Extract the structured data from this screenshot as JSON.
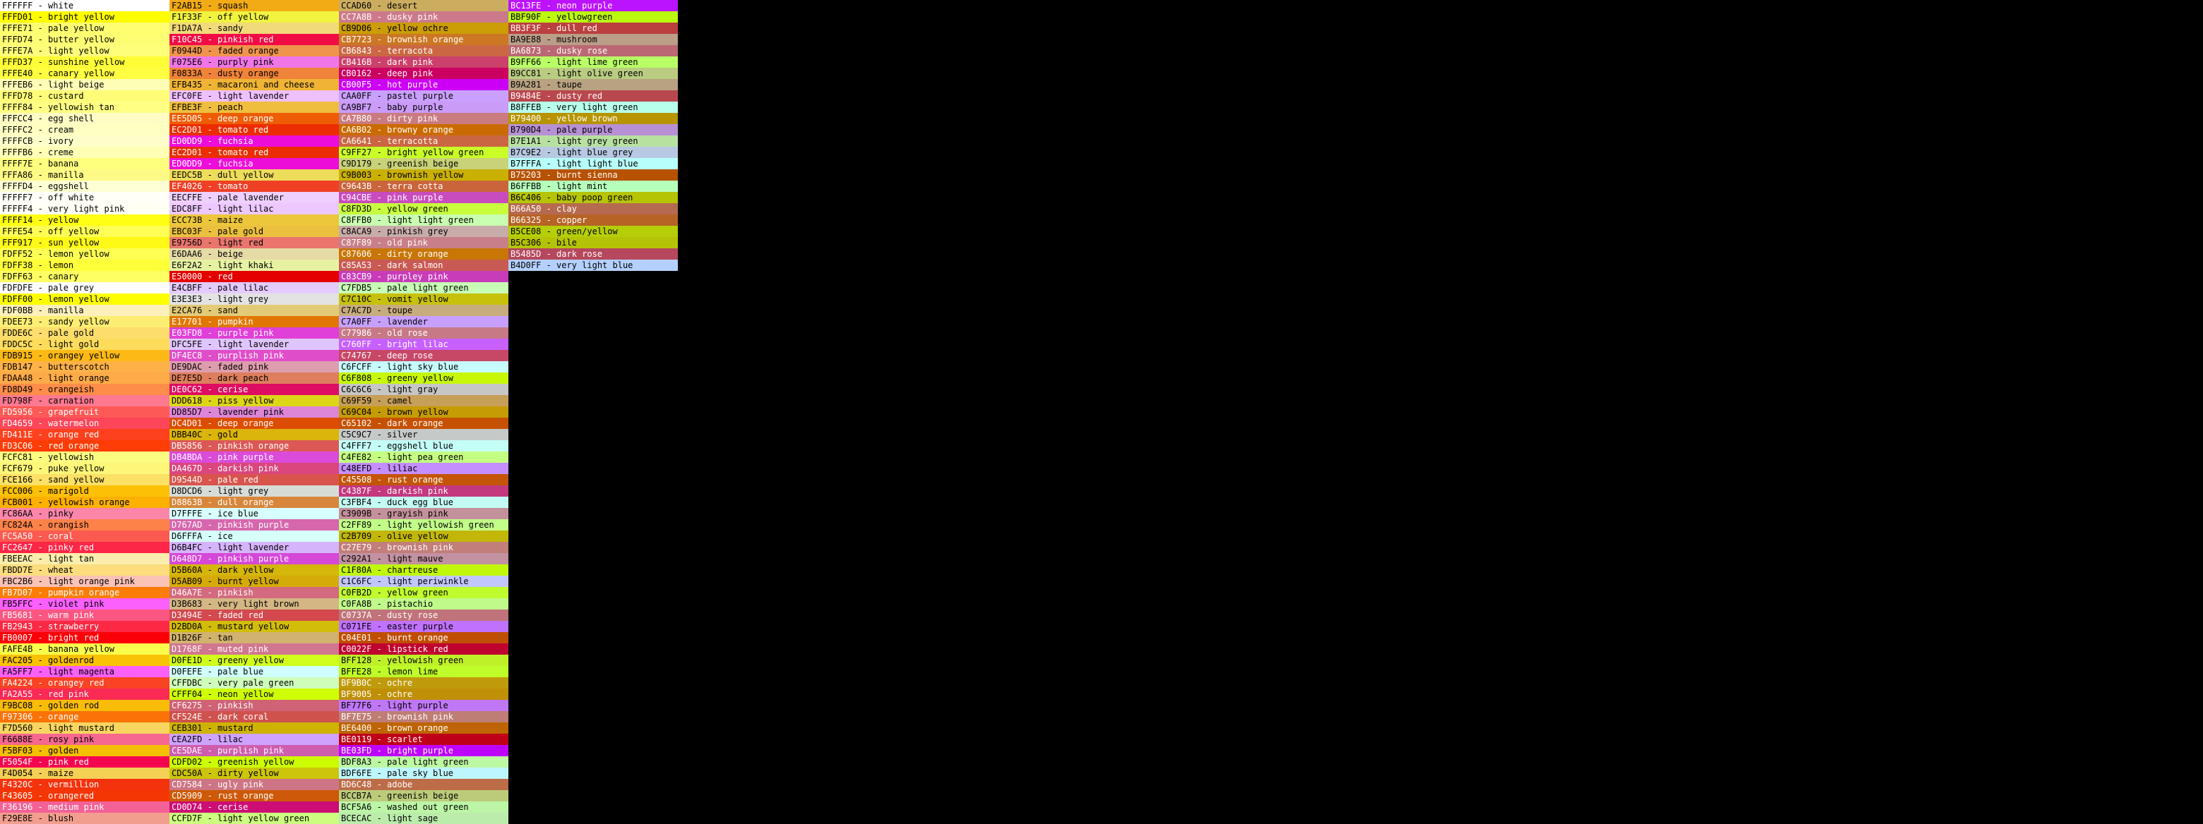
{
  "colors": [
    {
      "hex": "#ffffff",
      "name": "white"
    },
    {
      "hex": "#fffd01",
      "name": "bright yellow"
    },
    {
      "hex": "#fffe71",
      "name": "pale yellow"
    },
    {
      "hex": "#fffd74",
      "name": "butter yellow"
    },
    {
      "hex": "#fffe7a",
      "name": "light yellow"
    },
    {
      "hex": "#fffd37",
      "name": "sunshine yellow"
    },
    {
      "hex": "#fffe40",
      "name": "canary yellow"
    },
    {
      "hex": "#fffeb6",
      "name": "light beige"
    },
    {
      "hex": "#fffd78",
      "name": "custard"
    },
    {
      "hex": "#ffff84",
      "name": "yellowish tan"
    },
    {
      "hex": "#fffcc4",
      "name": "egg shell"
    },
    {
      "hex": "#ffffc2",
      "name": "cream"
    },
    {
      "hex": "#ffffcb",
      "name": "ivory"
    },
    {
      "hex": "#ffffb6",
      "name": "creme"
    },
    {
      "hex": "#ffff7e",
      "name": "banana"
    },
    {
      "hex": "#fffa86",
      "name": "manilla"
    },
    {
      "hex": "#ffffd4",
      "name": "eggshell"
    },
    {
      "hex": "#fffff7",
      "name": "off white"
    },
    {
      "hex": "#fffff4",
      "name": "very light pink"
    },
    {
      "hex": "#ffff14",
      "name": "yellow"
    },
    {
      "hex": "#fffe54",
      "name": "off yellow"
    },
    {
      "hex": "#fff917",
      "name": "sun yellow"
    },
    {
      "hex": "#fdff52",
      "name": "lemon yellow"
    },
    {
      "hex": "#fdff38",
      "name": "lemon"
    },
    {
      "hex": "#fdff63",
      "name": "canary"
    },
    {
      "hex": "#fdfdfe",
      "name": "pale grey"
    },
    {
      "hex": "#fdff00",
      "name": "lemon yellow"
    },
    {
      "hex": "#fdf0bb",
      "name": "manilla"
    },
    {
      "hex": "#fdee73",
      "name": "sandy yellow"
    },
    {
      "hex": "#fdde6c",
      "name": "pale gold"
    },
    {
      "hex": "#fddc5c",
      "name": "light gold"
    },
    {
      "hex": "#fdb915",
      "name": "orangey yellow"
    },
    {
      "hex": "#fdb147",
      "name": "butterscotch"
    },
    {
      "hex": "#fdaa48",
      "name": "light orange"
    },
    {
      "hex": "#fd8d49",
      "name": "orangeish"
    },
    {
      "hex": "#fd798f",
      "name": "carnation"
    },
    {
      "hex": "#fd5956",
      "name": "grapefruit"
    },
    {
      "hex": "#fd4659",
      "name": "watermelon"
    },
    {
      "hex": "#fd411e",
      "name": "orange red"
    },
    {
      "hex": "#fd3c06",
      "name": "red orange"
    },
    {
      "hex": "#fcfc81",
      "name": "yellowish"
    },
    {
      "hex": "#fcf679",
      "name": "puke yellow"
    },
    {
      "hex": "#fce166",
      "name": "sand yellow"
    },
    {
      "hex": "#fcc006",
      "name": "marigold"
    },
    {
      "hex": "#fcb001",
      "name": "yellowish orange"
    },
    {
      "hex": "#fc86aa",
      "name": "pinky"
    },
    {
      "hex": "#fc824a",
      "name": "orangish"
    },
    {
      "hex": "#fc5a50",
      "name": "coral"
    },
    {
      "hex": "#fc2647",
      "name": "pinky red"
    },
    {
      "hex": "#fbeeac",
      "name": "light tan"
    },
    {
      "hex": "#fbdd7e",
      "name": "wheat"
    },
    {
      "hex": "#fbc2b6",
      "name": "light orange pink"
    },
    {
      "hex": "#fb7d07",
      "name": "pumpkin orange"
    },
    {
      "hex": "#fb5ffc",
      "name": "violet pink"
    },
    {
      "hex": "#fb5681",
      "name": "warm pink"
    },
    {
      "hex": "#fb2943",
      "name": "strawberry"
    },
    {
      "hex": "#fb0007",
      "name": "bright red"
    },
    {
      "hex": "#fafe4b",
      "name": "banana yellow"
    },
    {
      "hex": "#fac205",
      "name": "goldenrod"
    },
    {
      "hex": "#fa5ff7",
      "name": "light magenta"
    },
    {
      "hex": "#fa4224",
      "name": "orangey red"
    },
    {
      "hex": "#fa2a55",
      "name": "red pink"
    },
    {
      "hex": "#f9bc08",
      "name": "golden rod"
    },
    {
      "hex": "#f97306",
      "name": "orange"
    },
    {
      "hex": "#f7d560",
      "name": "light mustard"
    },
    {
      "hex": "#f6688e",
      "name": "rosy pink"
    },
    {
      "hex": "#f5bf03",
      "name": "golden"
    },
    {
      "hex": "#f5054f",
      "name": "pink red"
    },
    {
      "hex": "#f4d054",
      "name": "maize"
    },
    {
      "hex": "#f4320c",
      "name": "vermillion"
    },
    {
      "hex": "#f43605",
      "name": "orangered"
    },
    {
      "hex": "#f36196",
      "name": "medium pink"
    },
    {
      "hex": "#f29e8e",
      "name": "blush"
    },
    {
      "hex": "#f2ab15",
      "name": "squash"
    },
    {
      "hex": "#f1f33f",
      "name": "off yellow"
    },
    {
      "hex": "#f1da7a",
      "name": "sandy"
    },
    {
      "hex": "#f10c45",
      "name": "pinkish red"
    },
    {
      "hex": "#f0944d",
      "name": "faded orange"
    },
    {
      "hex": "#f075e6",
      "name": "purply pink"
    },
    {
      "hex": "#f0833a",
      "name": "dusty orange"
    },
    {
      "hex": "#efb435",
      "name": "macaroni and cheese"
    },
    {
      "hex": "#efc0fe",
      "name": "light lavender"
    },
    {
      "hex": "#efbe3f",
      "name": "peach"
    },
    {
      "hex": "#ee5d05",
      "name": "deep orange"
    },
    {
      "hex": "#ec2d01",
      "name": "tomato red"
    },
    {
      "hex": "#ed0dd9",
      "name": "fuchsia"
    },
    {
      "hex": "#ec2d01",
      "name": "tomato red"
    },
    {
      "hex": "#ed0dd9",
      "name": "fuchsia"
    },
    {
      "hex": "#eedc5b",
      "name": "dull yellow"
    },
    {
      "hex": "#ef4026",
      "name": "tomato"
    },
    {
      "hex": "#eecffe",
      "name": "pale lavender"
    },
    {
      "hex": "#edc8ff",
      "name": "light lilac"
    },
    {
      "hex": "#ecc73b",
      "name": "maize"
    },
    {
      "hex": "#ebc03f",
      "name": "pale gold"
    },
    {
      "hex": "#e9756d",
      "name": "light red"
    },
    {
      "hex": "#e6daa6",
      "name": "beige"
    },
    {
      "hex": "#e6f2a2",
      "name": "light khaki"
    },
    {
      "hex": "#e50000",
      "name": "red"
    },
    {
      "hex": "#e4cbff",
      "name": "pale lilac"
    },
    {
      "hex": "#e3e3e3",
      "name": "light grey"
    },
    {
      "hex": "#e2ca76",
      "name": "sand"
    },
    {
      "hex": "#e17701",
      "name": "pumpkin"
    },
    {
      "hex": "#e03fd8",
      "name": "purple pink"
    },
    {
      "hex": "#dfc5fe",
      "name": "light lavender"
    },
    {
      "hex": "#df4ec8",
      "name": "purplish pink"
    },
    {
      "hex": "#de9dac",
      "name": "faded pink"
    },
    {
      "hex": "#de7e5d",
      "name": "dark peach"
    },
    {
      "hex": "#de0c62",
      "name": "cerise"
    },
    {
      "hex": "#ddd618",
      "name": "piss yellow"
    },
    {
      "hex": "#dd85d7",
      "name": "lavender pink"
    },
    {
      "hex": "#dc4d01",
      "name": "deep orange"
    },
    {
      "hex": "#dbb40c",
      "name": "gold"
    },
    {
      "hex": "#db5856",
      "name": "pinkish orange"
    },
    {
      "hex": "#db4bda",
      "name": "pink purple"
    },
    {
      "hex": "#da467d",
      "name": "darkish pink"
    },
    {
      "hex": "#d9544d",
      "name": "pale red"
    },
    {
      "hex": "#d8dcd6",
      "name": "light grey"
    },
    {
      "hex": "#d8863b",
      "name": "dull orange"
    },
    {
      "hex": "#d7fffe",
      "name": "ice blue"
    },
    {
      "hex": "#d767ad",
      "name": "pinkish purple"
    },
    {
      "hex": "#d6fffa",
      "name": "ice"
    },
    {
      "hex": "#d6b4fc",
      "name": "light lavender"
    },
    {
      "hex": "#d648d7",
      "name": "pinkish purple"
    },
    {
      "hex": "#d5b60a",
      "name": "dark yellow"
    },
    {
      "hex": "#d5ab09",
      "name": "burnt yellow"
    },
    {
      "hex": "#d46a7e",
      "name": "pinkish"
    },
    {
      "hex": "#d3b683",
      "name": "very light brown"
    },
    {
      "hex": "#d3494e",
      "name": "faded red"
    },
    {
      "hex": "#d2bd0a",
      "name": "mustard yellow"
    },
    {
      "hex": "#d1b26f",
      "name": "tan"
    },
    {
      "hex": "#d1768f",
      "name": "muted pink"
    },
    {
      "hex": "#d0fe1d",
      "name": "greeny yellow"
    },
    {
      "hex": "#d0fefe",
      "name": "pale blue"
    },
    {
      "hex": "#cffdbc",
      "name": "very pale green"
    },
    {
      "hex": "#cfff04",
      "name": "neon yellow"
    },
    {
      "hex": "#cf6275",
      "name": "pinkish"
    },
    {
      "hex": "#cf524e",
      "name": "dark coral"
    },
    {
      "hex": "#ceb301",
      "name": "mustard"
    },
    {
      "hex": "#cea2fd",
      "name": "lilac"
    },
    {
      "hex": "#ce5dae",
      "name": "purplish pink"
    },
    {
      "hex": "#cdfd02",
      "name": "greenish yellow"
    },
    {
      "hex": "#cdc50a",
      "name": "dirty yellow"
    },
    {
      "hex": "#cd7584",
      "name": "ugly pink"
    },
    {
      "hex": "#cd5909",
      "name": "rust orange"
    },
    {
      "hex": "#cd0d74",
      "name": "cerise"
    },
    {
      "hex": "#ccfd7f",
      "name": "light yellow green"
    },
    {
      "hex": "#ccad60",
      "name": "desert"
    },
    {
      "hex": "#cc7a8b",
      "name": "dusky pink"
    },
    {
      "hex": "#cb9d06",
      "name": "yellow ochre"
    },
    {
      "hex": "#cb7723",
      "name": "brownish orange"
    },
    {
      "hex": "#cb6843",
      "name": "terracota"
    },
    {
      "hex": "#cb416b",
      "name": "dark pink"
    },
    {
      "hex": "#cb0162",
      "name": "deep pink"
    },
    {
      "hex": "#cb00f5",
      "name": "hot purple"
    },
    {
      "hex": "#caa0ff",
      "name": "pastel purple"
    },
    {
      "hex": "#ca9bf7",
      "name": "baby purple"
    },
    {
      "hex": "#ca7b80",
      "name": "dirty pink"
    },
    {
      "hex": "#ca6b02",
      "name": "browny orange"
    },
    {
      "hex": "#ca6641",
      "name": "terracotta"
    },
    {
      "hex": "#c9ff27",
      "name": "bright yellow green"
    },
    {
      "hex": "#c9d179",
      "name": "greenish beige"
    },
    {
      "hex": "#c9b003",
      "name": "brownish yellow"
    },
    {
      "hex": "#c9643b",
      "name": "terra cotta"
    },
    {
      "hex": "#c94cbe",
      "name": "pink purple"
    },
    {
      "hex": "#c8fd3d",
      "name": "yellow green"
    },
    {
      "hex": "#c8ffb0",
      "name": "light light green"
    },
    {
      "hex": "#c8aca9",
      "name": "pinkish grey"
    },
    {
      "hex": "#c87f89",
      "name": "old pink"
    },
    {
      "hex": "#c87606",
      "name": "dirty orange"
    },
    {
      "hex": "#c85a53",
      "name": "dark salmon"
    },
    {
      "hex": "#c83cb9",
      "name": "purpley pink"
    },
    {
      "hex": "#c7fdb5",
      "name": "pale light green"
    },
    {
      "hex": "#c7c10c",
      "name": "vomit yellow"
    },
    {
      "hex": "#c7ac7d",
      "name": "toupe"
    },
    {
      "hex": "#c7a0ff",
      "name": "lavender"
    },
    {
      "hex": "#c77986",
      "name": "old rose"
    },
    {
      "hex": "#c760ff",
      "name": "bright lilac"
    },
    {
      "hex": "#c74767",
      "name": "deep rose"
    },
    {
      "hex": "#c6fcff",
      "name": "light sky blue"
    },
    {
      "hex": "#c6f808",
      "name": "greeny yellow"
    },
    {
      "hex": "#c6c6c6",
      "name": "light gray"
    },
    {
      "hex": "#c69f59",
      "name": "camel"
    },
    {
      "hex": "#c69c04",
      "name": "brown yellow"
    },
    {
      "hex": "#c65102",
      "name": "dark orange"
    },
    {
      "hex": "#c5c9c7",
      "name": "silver"
    },
    {
      "hex": "#c4fff7",
      "name": "eggshell blue"
    },
    {
      "hex": "#c4fe82",
      "name": "light pea green"
    },
    {
      "hex": "#c48efd",
      "name": "liliac"
    },
    {
      "hex": "#c45508",
      "name": "rust orange"
    },
    {
      "hex": "#c4387f",
      "name": "darkish pink"
    },
    {
      "hex": "#c3fbf4",
      "name": "duck egg blue"
    },
    {
      "hex": "#c3909b",
      "name": "grayish pink"
    },
    {
      "hex": "#c2ff89",
      "name": "light yellowish green"
    },
    {
      "hex": "#c2b709",
      "name": "olive yellow"
    },
    {
      "hex": "#c27e79",
      "name": "brownish pink"
    },
    {
      "hex": "#c292a1",
      "name": "light mauve"
    },
    {
      "hex": "#c1f80a",
      "name": "chartreuse"
    },
    {
      "hex": "#c1c6fc",
      "name": "light periwinkle"
    },
    {
      "hex": "#c0fb2d",
      "name": "yellow green"
    },
    {
      "hex": "#c0fa8b",
      "name": "pistachio"
    },
    {
      "hex": "#c0737a",
      "name": "dusty rose"
    },
    {
      "hex": "#c071fe",
      "name": "easter purple"
    },
    {
      "hex": "#c04e01",
      "name": "burnt orange"
    },
    {
      "hex": "#c0022f",
      "name": "lipstick red"
    },
    {
      "hex": "#bff128",
      "name": "yellowish green"
    },
    {
      "hex": "#bffe28",
      "name": "lemon lime"
    },
    {
      "hex": "#bf9b0c",
      "name": "ochre"
    },
    {
      "hex": "#bf9005",
      "name": "ochre"
    },
    {
      "hex": "#bf77f6",
      "name": "light purple"
    },
    {
      "hex": "#bf7e75",
      "name": "brownish pink"
    },
    {
      "hex": "#be6400",
      "name": "brown orange"
    },
    {
      "hex": "#be0119",
      "name": "scarlet"
    },
    {
      "hex": "#be03fd",
      "name": "bright purple"
    },
    {
      "hex": "#bdf8a3",
      "name": "pale light green"
    },
    {
      "hex": "#bdf6fe",
      "name": "pale sky blue"
    },
    {
      "hex": "#bd6c48",
      "name": "adobe"
    },
    {
      "hex": "#bccb7a",
      "name": "greenish beige"
    },
    {
      "hex": "#bcf5a6",
      "name": "washed out green"
    },
    {
      "hex": "#bcecac",
      "name": "light sage"
    },
    {
      "hex": "#bc13fe",
      "name": "neon purple"
    },
    {
      "hex": "#bbf90f",
      "name": "yellowgreen"
    },
    {
      "hex": "#bb3f3f",
      "name": "dull red"
    },
    {
      "hex": "#ba9e88",
      "name": "mushroom"
    },
    {
      "hex": "#ba6873",
      "name": "dusky rose"
    },
    {
      "hex": "#b9ff66",
      "name": "light lime green"
    },
    {
      "hex": "#b9cc81",
      "name": "light olive green"
    },
    {
      "hex": "#b9a281",
      "name": "taupe"
    },
    {
      "hex": "#b9484e",
      "name": "dusty red"
    },
    {
      "hex": "#b8ffeb",
      "name": "very light green"
    },
    {
      "hex": "#b79400",
      "name": "yellow brown"
    },
    {
      "hex": "#b790d4",
      "name": "pale purple"
    },
    {
      "hex": "#b7e1a1",
      "name": "light grey green"
    },
    {
      "hex": "#b7c9e2",
      "name": "light blue grey"
    },
    {
      "hex": "#b7fffa",
      "name": "light light blue"
    },
    {
      "hex": "#b75203",
      "name": "burnt sienna"
    },
    {
      "hex": "#b6ffbb",
      "name": "light mint"
    },
    {
      "hex": "#b6c406",
      "name": "baby poop green"
    },
    {
      "hex": "#b66a50",
      "name": "clay"
    },
    {
      "hex": "#b66325",
      "name": "copper"
    },
    {
      "hex": "#b5ce08",
      "name": "green/yellow"
    },
    {
      "hex": "#b5c306",
      "name": "bile"
    },
    {
      "hex": "#b5485d",
      "name": "dark rose"
    },
    {
      "hex": "#b4d0ff",
      "name": "very light blue"
    }
  ]
}
